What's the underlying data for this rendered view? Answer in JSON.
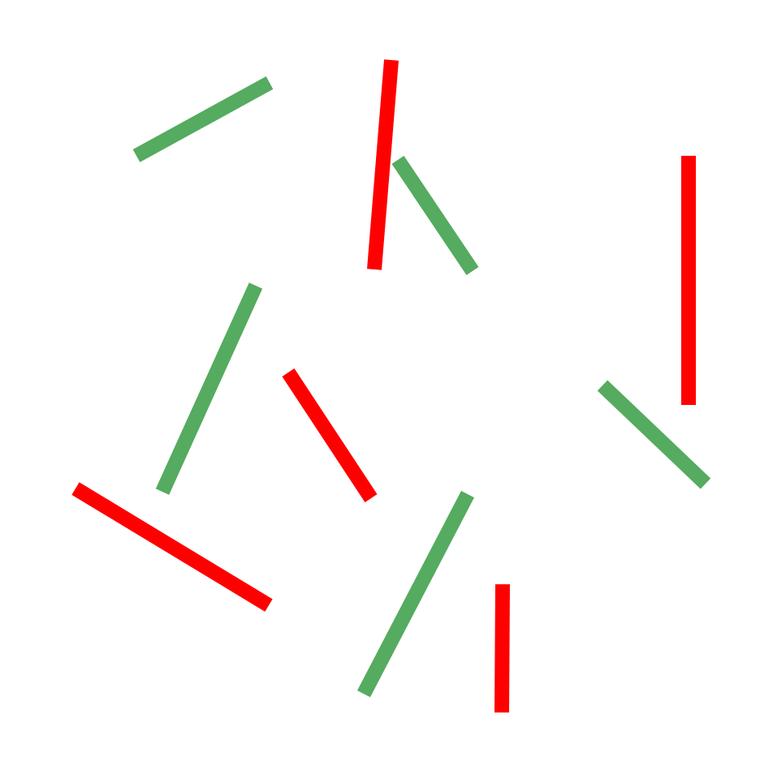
{
  "colors": {
    "background": "#ffffff",
    "red": "#ff0000",
    "green": "#55ab5f"
  },
  "sticks": [
    {
      "id": "green-1",
      "color": "green"
    },
    {
      "id": "red-1",
      "color": "red"
    },
    {
      "id": "green-2",
      "color": "green"
    },
    {
      "id": "red-2",
      "color": "red"
    },
    {
      "id": "green-3",
      "color": "green"
    },
    {
      "id": "red-3",
      "color": "red"
    },
    {
      "id": "green-4",
      "color": "green"
    },
    {
      "id": "red-4",
      "color": "red"
    },
    {
      "id": "green-5",
      "color": "green"
    },
    {
      "id": "red-5",
      "color": "red"
    }
  ]
}
